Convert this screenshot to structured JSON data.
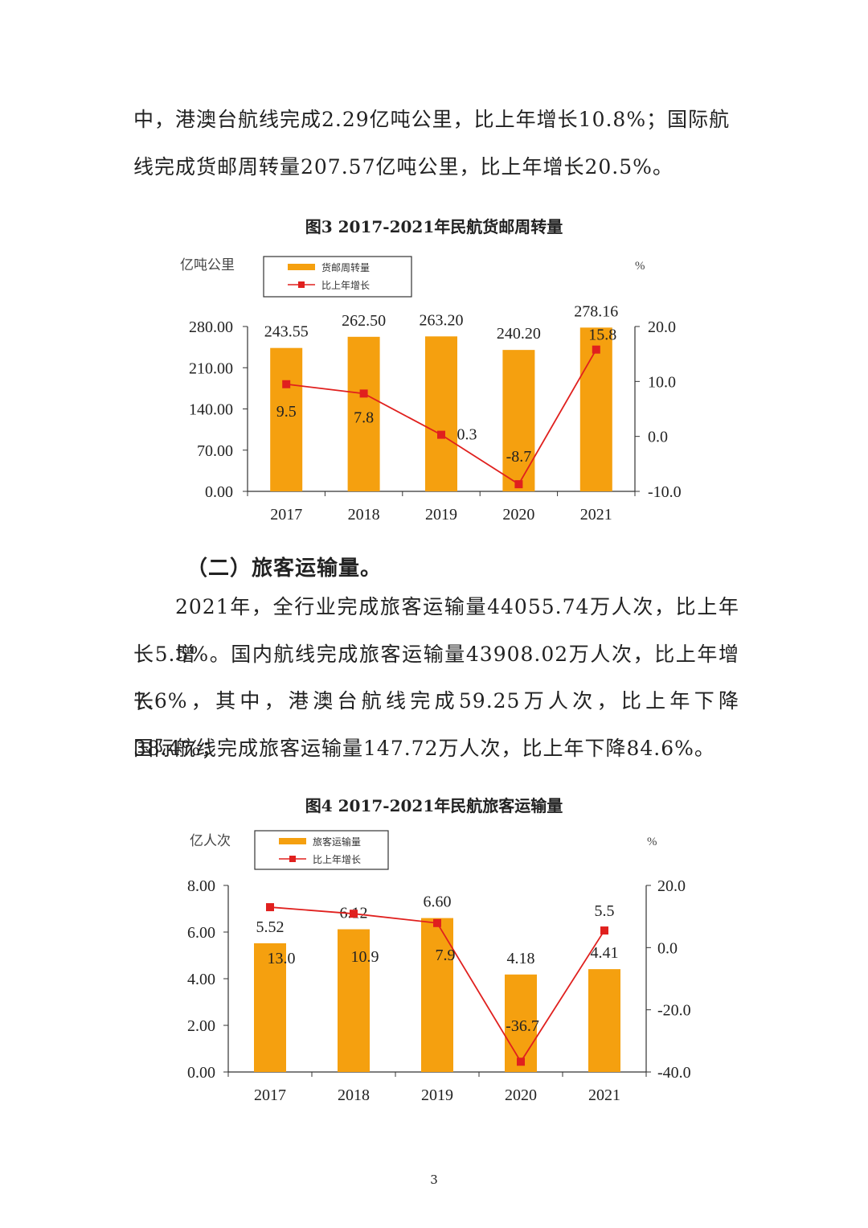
{
  "paragraph1": [
    "中，港澳台航线完成2.29亿吨公里，比上年增长10.8%；国际航",
    "线完成货邮周转量207.57亿吨公里，比上年增长20.5%。"
  ],
  "section_heading": "（二）旅客运输量。",
  "paragraph2": [
    "2021年，全行业完成旅客运输量44055.74万人次，比上年增",
    "长5.5%。国内航线完成旅客运输量43908.02万人次，比上年增长",
    "7.6%，其中，港澳台航线完成59.25万人次，比上年下降38.4%；",
    "国际航线完成旅客运输量147.72万人次，比上年下降84.6%。"
  ],
  "page_number": "3",
  "colors": {
    "bar": "#F5A00F",
    "line": "#E0201E"
  },
  "chart_data": [
    {
      "type": "bar",
      "title": "图3 2017-2021年民航货邮周转量",
      "ylabel": "亿吨公里",
      "y2label": "%",
      "categories": [
        "2017",
        "2018",
        "2019",
        "2020",
        "2021"
      ],
      "ylim": [
        0,
        280
      ],
      "yticks": [
        "0.00",
        "70.00",
        "140.00",
        "210.00",
        "280.00"
      ],
      "y2lim": [
        -10,
        20
      ],
      "y2ticks": [
        "-10.0",
        "0.0",
        "10.0",
        "20.0"
      ],
      "series": [
        {
          "name": "货邮周转量",
          "type": "bar",
          "values": [
            243.55,
            262.5,
            263.2,
            240.2,
            278.16
          ],
          "labels": [
            "243.55",
            "262.50",
            "263.20",
            "240.20",
            "278.16"
          ]
        },
        {
          "name": "比上年增长",
          "type": "line",
          "axis": "right",
          "values": [
            9.5,
            7.8,
            0.3,
            -8.7,
            15.8
          ],
          "labels": [
            "9.5",
            "7.8",
            "0.3",
            "-8.7",
            "15.8"
          ]
        }
      ],
      "legend": "top-left"
    },
    {
      "type": "bar",
      "title": "图4  2017-2021年民航旅客运输量",
      "ylabel": "亿人次",
      "y2label": "%",
      "categories": [
        "2017",
        "2018",
        "2019",
        "2020",
        "2021"
      ],
      "ylim": [
        0,
        8
      ],
      "yticks": [
        "0.00",
        "2.00",
        "4.00",
        "6.00",
        "8.00"
      ],
      "y2lim": [
        -40,
        20
      ],
      "y2ticks": [
        "-40.0",
        "-20.0",
        "0.0",
        "20.0"
      ],
      "series": [
        {
          "name": "旅客运输量",
          "type": "bar",
          "values": [
            5.52,
            6.12,
            6.6,
            4.18,
            4.41
          ],
          "labels": [
            "5.52",
            "6.12",
            "6.60",
            "4.18",
            "4.41"
          ]
        },
        {
          "name": "比上年增长",
          "type": "line",
          "axis": "right",
          "values": [
            13.0,
            10.9,
            7.9,
            -36.7,
            5.5
          ],
          "labels": [
            "13.0",
            "10.9",
            "7.9",
            "-36.7",
            "5.5"
          ]
        }
      ],
      "legend": "top-left"
    }
  ]
}
